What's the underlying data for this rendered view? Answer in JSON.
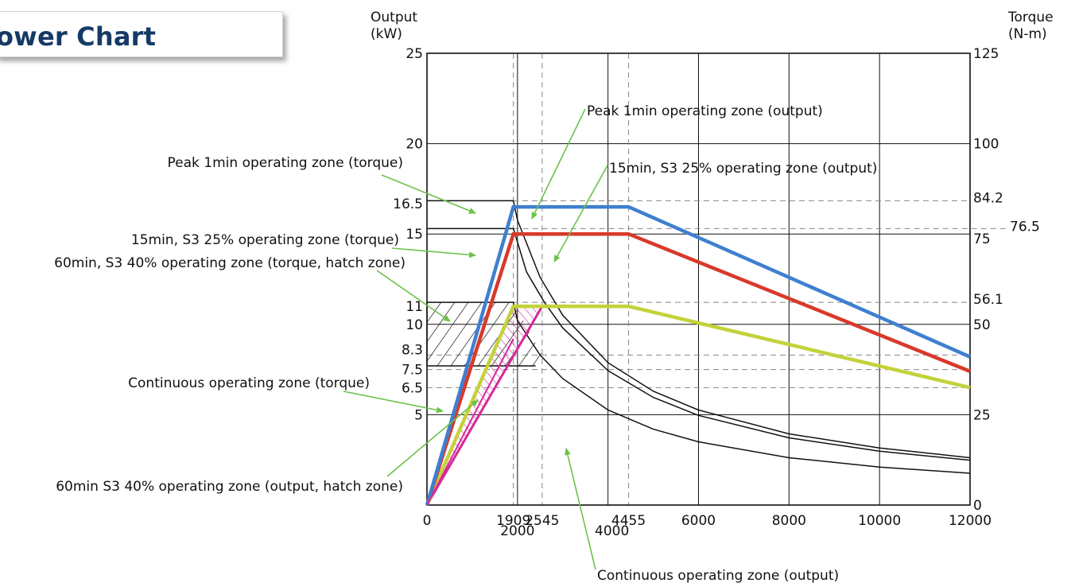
{
  "title": "ower Chart",
  "colors": {
    "peak_output": "#3f7fd0",
    "s3_25_output": "#d8392b",
    "s3_40_output": "#c3d23a",
    "continuous_output": "#d6289a",
    "torque_curves": "#111111",
    "annotation_arrows": "#6cc24a",
    "title": "#163a66"
  },
  "chart_data": {
    "type": "line",
    "x_label": "",
    "y_left_label": [
      "Output",
      "(kW)"
    ],
    "y_right_label": [
      "Torque",
      "(N-m)"
    ],
    "xlim": [
      0,
      12000
    ],
    "y_left_lim": [
      0,
      25
    ],
    "y_right_lim": [
      0,
      125
    ],
    "x_ticks": [
      "0",
      "2000",
      "4000",
      "6000",
      "8000",
      "10000",
      "12000"
    ],
    "x_marks": [
      "1909",
      "2545",
      "4455"
    ],
    "y_left_ticks": [
      "25",
      "20",
      "16.5",
      "15",
      "11",
      "10",
      "8.3",
      "7.5",
      "6.5",
      "5"
    ],
    "y_right_ticks": [
      "125",
      "100",
      "84.2",
      "76.5",
      "75",
      "56.1",
      "50",
      "25",
      "0"
    ],
    "output_series": [
      {
        "key": "peak",
        "x": [
          0,
          1909,
          4455,
          12000
        ],
        "y": [
          0,
          16.5,
          16.5,
          8.2
        ]
      },
      {
        "key": "s3_25",
        "x": [
          0,
          1909,
          4455,
          12000
        ],
        "y": [
          0,
          15,
          15,
          7.4
        ]
      },
      {
        "key": "s3_40",
        "x": [
          0,
          1909,
          4455,
          12000
        ],
        "y": [
          0,
          11,
          11,
          6.5
        ]
      },
      {
        "key": "continuous",
        "x": [
          0,
          2545
        ],
        "y": [
          0,
          11
        ]
      }
    ],
    "torque_series": [
      {
        "key": "peak",
        "x": [
          0,
          1909,
          2000,
          2500,
          3000,
          4000,
          5000,
          6000,
          8000,
          10000,
          12000
        ],
        "y": [
          84.2,
          84.2,
          78.8,
          63,
          52.5,
          39.4,
          31.5,
          26.3,
          19.7,
          15.8,
          13.1
        ]
      },
      {
        "key": "s3_25",
        "x": [
          0,
          1909,
          2200,
          2600,
          3000,
          4000,
          5000,
          6000,
          8000,
          10000,
          12000
        ],
        "y": [
          76.5,
          76.5,
          64.5,
          56,
          49,
          37.2,
          29.8,
          24.8,
          18.6,
          14.9,
          12.4
        ]
      },
      {
        "key": "s3_40",
        "x": [
          0,
          1909,
          2000,
          2500,
          3000,
          4000,
          5000,
          6000,
          8000,
          10000,
          12000
        ],
        "y": [
          56.1,
          56.1,
          51,
          41.5,
          35,
          26.3,
          21,
          17.5,
          13.1,
          10.5,
          8.8
        ]
      },
      {
        "key": "continuous",
        "x": [
          0,
          2400
        ],
        "y": [
          38.5,
          38.5
        ]
      }
    ],
    "annotations": [
      {
        "key": "peak_torque",
        "text": "Peak 1min operating zone (torque)"
      },
      {
        "key": "s3_25_torque",
        "text": "15min, S3 25% operating zone (torque)"
      },
      {
        "key": "s3_40_torque",
        "text": "60min, S3 40% operating zone (torque, hatch zone)"
      },
      {
        "key": "cont_torque",
        "text": "Continuous operating zone (torque)"
      },
      {
        "key": "s3_40_output",
        "text": "60min S3 40% operating zone (output, hatch zone)"
      },
      {
        "key": "peak_output",
        "text": "Peak 1min operating zone (output)"
      },
      {
        "key": "s3_25_output",
        "text": "15min, S3 25% operating zone (output)"
      },
      {
        "key": "cont_output",
        "text": "Continuous operating zone (output)"
      }
    ],
    "grid": true,
    "legend": "none"
  }
}
